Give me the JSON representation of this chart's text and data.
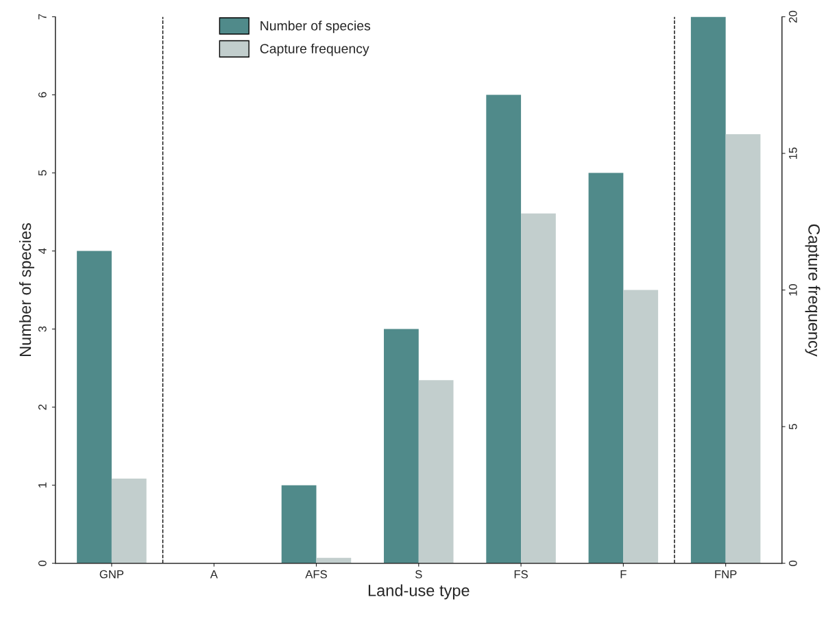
{
  "chart_data": {
    "type": "bar",
    "xlabel": "Land-use type",
    "ylabel": "Number of species",
    "y2label": "Capture frequency",
    "categories": [
      "GNP",
      "A",
      "AFS",
      "S",
      "FS",
      "F",
      "FNP"
    ],
    "series": [
      {
        "name": "Number of species",
        "color": "#508a8a",
        "values": [
          4,
          0,
          1,
          3,
          6,
          5,
          7
        ]
      },
      {
        "name": "Capture frequency",
        "color": "#c2cecd",
        "axis": "y2",
        "values": [
          3.1,
          0,
          0.2,
          6.7,
          12.8,
          10.0,
          15.7
        ]
      }
    ],
    "ylim": [
      0,
      7
    ],
    "yticks": [
      0,
      1,
      2,
      3,
      4,
      5,
      6,
      7
    ],
    "y2lim": [
      0,
      20
    ],
    "y2ticks": [
      0,
      5,
      10,
      15,
      20
    ],
    "grid": false,
    "legend": "top"
  }
}
